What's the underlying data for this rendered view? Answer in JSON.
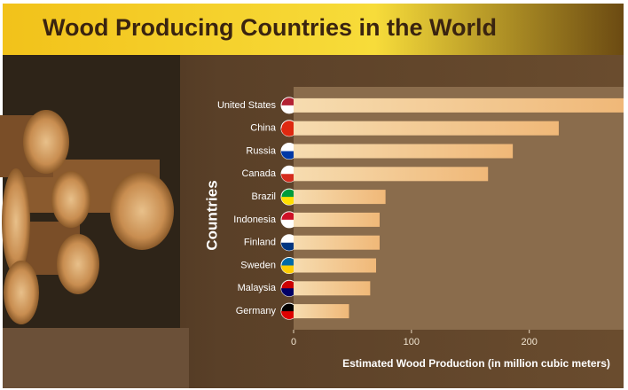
{
  "chart_data": {
    "type": "barh",
    "title": "Wood Producing Countries in the World",
    "categories": [
      "United States",
      "China",
      "Russia",
      "Canada",
      "Brazil",
      "Indonesia",
      "Finland",
      "Sweden",
      "Malaysia",
      "Germany"
    ],
    "values": [
      280,
      225,
      186,
      165,
      78,
      73,
      73,
      70,
      65,
      47
    ],
    "color": "#f3c98f",
    "xlabel": "Estimated Wood Production (in million cubic meters)",
    "ylabel": "Countries",
    "xlim": [
      0,
      280
    ],
    "xticks": [
      0,
      100,
      200
    ]
  }
}
